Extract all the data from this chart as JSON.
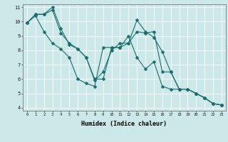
{
  "xlabel": "Humidex (Indice chaleur)",
  "background_color": "#cce8e8",
  "grid_color": "#ffffff",
  "line_color": "#1a6e6e",
  "line1_x": [
    0,
    1,
    2,
    3,
    4,
    5,
    6,
    7,
    8,
    9,
    10,
    11,
    12,
    13,
    14,
    15,
    16,
    17,
    18,
    19,
    20,
    21,
    22,
    23
  ],
  "line1_y": [
    9.9,
    10.5,
    10.5,
    10.8,
    9.2,
    8.5,
    8.1,
    7.5,
    6.0,
    6.0,
    8.2,
    8.2,
    8.5,
    10.1,
    9.3,
    8.9,
    7.9,
    6.5,
    5.3,
    5.3,
    5.0,
    4.7,
    4.3,
    4.2
  ],
  "line2_x": [
    0,
    1,
    2,
    3,
    4,
    5,
    6,
    7,
    8,
    9,
    10,
    11,
    12,
    13,
    14,
    15,
    16,
    17,
    18,
    19,
    20,
    21,
    22,
    23
  ],
  "line2_y": [
    9.9,
    10.5,
    10.5,
    11.0,
    9.5,
    8.4,
    8.1,
    7.5,
    5.9,
    6.5,
    8.0,
    8.5,
    8.5,
    9.3,
    9.2,
    9.3,
    6.5,
    6.5,
    5.3,
    5.3,
    5.0,
    4.7,
    4.3,
    4.2
  ],
  "line3_x": [
    0,
    1,
    2,
    3,
    4,
    5,
    6,
    7,
    8,
    9,
    10,
    11,
    12,
    13,
    14,
    15,
    16,
    17,
    18,
    19,
    20,
    21,
    22,
    23
  ],
  "line3_y": [
    9.9,
    10.4,
    9.3,
    8.5,
    8.1,
    7.5,
    6.0,
    5.7,
    5.5,
    8.2,
    8.2,
    8.2,
    9.0,
    7.5,
    6.7,
    7.2,
    5.5,
    5.3,
    5.3,
    5.3,
    5.0,
    4.7,
    4.3,
    4.2
  ],
  "ylim": [
    3.8,
    11.2
  ],
  "xlim": [
    -0.5,
    23.5
  ],
  "yticks": [
    4,
    5,
    6,
    7,
    8,
    9,
    10,
    11
  ],
  "xticks": [
    0,
    1,
    2,
    3,
    4,
    5,
    6,
    7,
    8,
    9,
    10,
    11,
    12,
    13,
    14,
    15,
    16,
    17,
    18,
    19,
    20,
    21,
    22,
    23
  ]
}
